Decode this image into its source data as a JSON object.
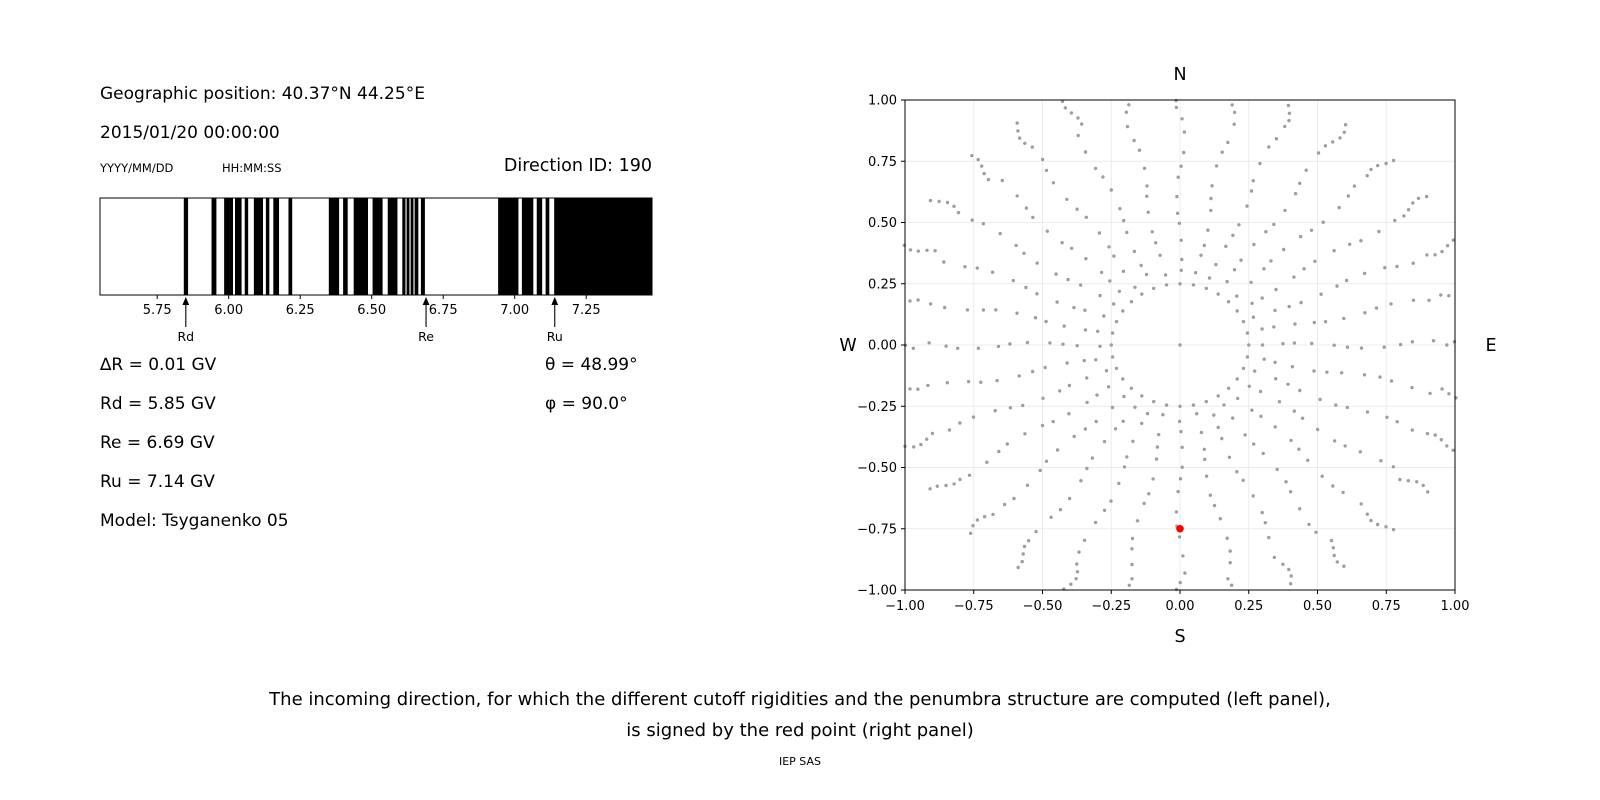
{
  "left_panel": {
    "geo_position": "Geographic position: 40.37°N 44.25°E",
    "datetime": "2015/01/20 00:00:00",
    "date_format_label": "YYYY/MM/DD",
    "time_format_label": "HH:MM:SS",
    "direction_id_label": "Direction ID: 190",
    "info_left": [
      "∆R = 0.01 GV",
      "Rd = 5.85 GV",
      "Re = 6.69 GV",
      "Ru = 7.14 GV",
      "Model: Tsyganenko 05"
    ],
    "info_right": [
      "θ = 48.99°",
      "φ = 90.0°"
    ]
  },
  "caption": {
    "line1": "The incoming direction, for which the different cutoff rigidities and the penumbra structure are computed (left panel),",
    "line2": "is signed by the red point (right panel)",
    "credit": "IEP SAS"
  },
  "chart_data": [
    {
      "type": "bar",
      "name": "penumbra-structure",
      "xlabel": "",
      "xlim": [
        5.55,
        7.48
      ],
      "xticks": [
        5.75,
        6.0,
        6.25,
        6.5,
        6.75,
        7.0,
        7.25
      ],
      "xtick_labels": [
        "5.75",
        "6.00",
        "6.25",
        "6.50",
        "6.75",
        "7.00",
        "7.25"
      ],
      "bar_color": "#000000",
      "forbidden_bands_gv": [
        [
          5.843,
          5.858
        ],
        [
          5.94,
          5.957
        ],
        [
          5.984,
          6.015
        ],
        [
          6.022,
          6.045
        ],
        [
          6.056,
          6.068
        ],
        [
          6.088,
          6.12
        ],
        [
          6.13,
          6.142
        ],
        [
          6.156,
          6.176
        ],
        [
          6.209,
          6.222
        ],
        [
          6.35,
          6.386
        ],
        [
          6.4,
          6.416
        ],
        [
          6.437,
          6.487
        ],
        [
          6.503,
          6.538
        ],
        [
          6.556,
          6.59
        ],
        [
          6.607,
          6.618
        ],
        [
          6.622,
          6.632
        ],
        [
          6.636,
          6.646
        ],
        [
          6.65,
          6.663
        ],
        [
          6.672,
          6.686
        ],
        [
          6.942,
          7.013
        ],
        [
          7.025,
          7.065
        ],
        [
          7.077,
          7.096
        ],
        [
          7.108,
          7.121
        ],
        [
          7.138,
          7.48
        ]
      ],
      "markers": [
        {
          "label": "Rd",
          "value_gv": 5.85
        },
        {
          "label": "Re",
          "value_gv": 6.69
        },
        {
          "label": "Ru",
          "value_gv": 7.14
        }
      ],
      "delta_R_gv": 0.01,
      "Rd_gv": 5.85,
      "Re_gv": 6.69,
      "Ru_gv": 7.14,
      "theta_deg": 48.99,
      "phi_deg": 90.0,
      "model": "Tsyganenko 05",
      "direction_id": 190
    },
    {
      "type": "scatter",
      "name": "incoming-directions-sky-map",
      "xlim": [
        -1,
        1
      ],
      "ylim": [
        -1,
        1
      ],
      "xticks": [
        -1,
        -0.75,
        -0.5,
        -0.25,
        0,
        0.25,
        0.5,
        0.75,
        1
      ],
      "yticks": [
        -1,
        -0.75,
        -0.5,
        -0.25,
        0,
        0.25,
        0.5,
        0.75,
        1
      ],
      "xtick_labels": [
        "−1.00",
        "−0.75",
        "−0.50",
        "−0.25",
        "0.00",
        "0.25",
        "0.50",
        "0.75",
        "1.00"
      ],
      "ytick_labels": [
        "−1.00",
        "−0.75",
        "−0.50",
        "−0.25",
        "0.00",
        "0.25",
        "0.50",
        "0.75",
        "1.00"
      ],
      "compass": {
        "top": "N",
        "bottom": "S",
        "left": "W",
        "right": "E"
      },
      "grid": true,
      "dot_color": "#9e9e9e",
      "spokes": {
        "count": 32,
        "r_start": 0.3,
        "r_step": 0.062,
        "r_points": 11,
        "tip_cluster": {
          "start": 0.97,
          "step": 0.028,
          "points": 5
        }
      },
      "inner_ring": {
        "radius": 0.25,
        "points": 32
      },
      "center_point": [
        0,
        0
      ],
      "red_point": {
        "x": 0.0,
        "y": -0.75,
        "color": "#ff0000"
      }
    }
  ]
}
